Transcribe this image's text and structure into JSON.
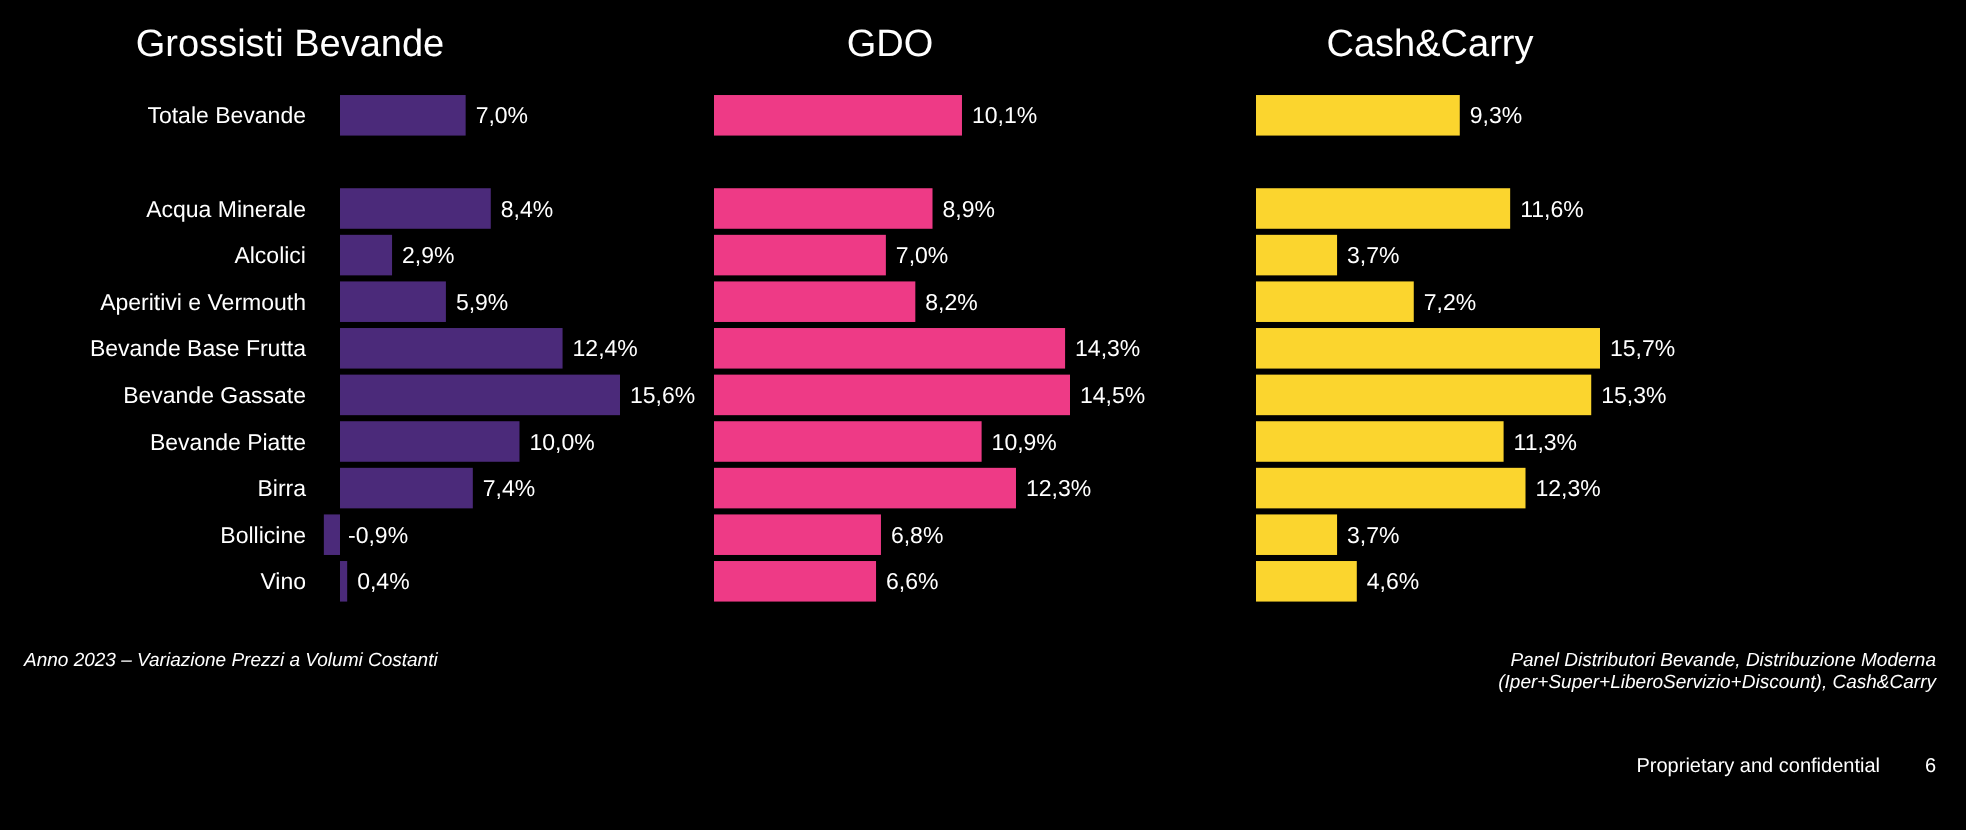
{
  "chart_data": [
    {
      "type": "bar",
      "orientation": "horizontal",
      "title": "Grossisti Bevande",
      "categories": [
        "Totale Bevande",
        null,
        "Acqua Minerale",
        "Alcolici",
        "Aperitivi e Vermouth",
        "Bevande Base Frutta",
        "Bevande Gassate",
        "Bevande Piatte",
        "Birra",
        "Bollicine",
        "Vino"
      ],
      "values": [
        7.0,
        null,
        8.4,
        2.9,
        5.9,
        12.4,
        15.6,
        10.0,
        7.4,
        -0.9,
        0.4
      ],
      "value_labels": [
        "7,0%",
        null,
        "8,4%",
        "2,9%",
        "5,9%",
        "12,4%",
        "15,6%",
        "10,0%",
        "7,4%",
        "-0,9%",
        "0,4%"
      ],
      "color": "#4b2a7a",
      "tick_labels": "y",
      "annotations": [
        "Anno 2023 – Variazione Prezzi a Volumi Costanti"
      ]
    },
    {
      "type": "bar",
      "orientation": "horizontal",
      "title": "GDO",
      "categories": [
        null,
        null,
        null,
        null,
        null,
        null,
        null,
        null,
        null,
        null,
        null
      ],
      "values": [
        10.1,
        null,
        8.9,
        7.0,
        8.2,
        14.3,
        14.5,
        10.9,
        12.3,
        6.8,
        6.6
      ],
      "value_labels": [
        "10,1%",
        null,
        "8,9%",
        "7,0%",
        "8,2%",
        "14,3%",
        "14,5%",
        "10,9%",
        "12,3%",
        "6,8%",
        "6,6%"
      ],
      "color": "#ee3a86",
      "tick_labels": false
    },
    {
      "type": "bar",
      "orientation": "horizontal",
      "title": "Cash&Carry",
      "categories": [
        null,
        null,
        null,
        null,
        null,
        null,
        null,
        null,
        null,
        null,
        null
      ],
      "values": [
        9.3,
        null,
        11.6,
        3.7,
        7.2,
        15.7,
        15.3,
        11.3,
        12.3,
        3.7,
        4.6
      ],
      "value_labels": [
        "9,3%",
        null,
        "11,6%",
        "3,7%",
        "7,2%",
        "15,7%",
        "15,3%",
        "11,3%",
        "12,3%",
        "3,7%",
        "4,6%"
      ],
      "color": "#fbd52e",
      "tick_labels": false,
      "annotations": [
        "Panel Distributori Bevande, Distribuzione Moderna (Iper+Super+LiberoServizio+Discount), Cash&Carry",
        "Proprietary and confidential",
        "6"
      ]
    }
  ]
}
